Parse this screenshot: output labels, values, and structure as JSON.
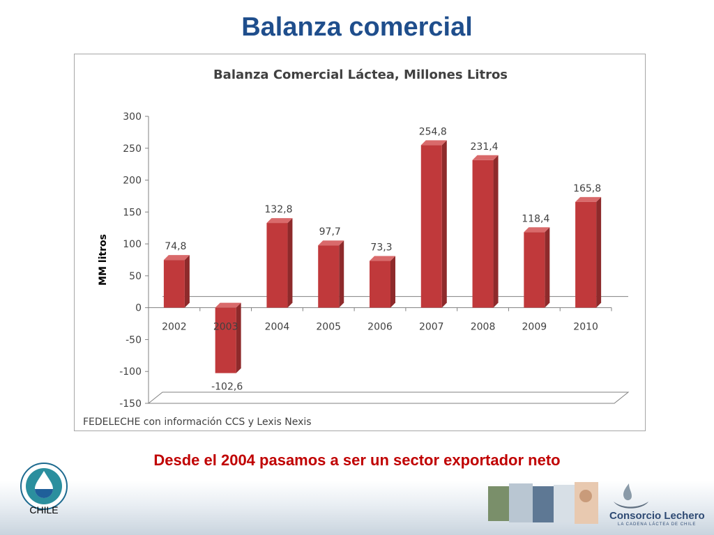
{
  "slide": {
    "title": "Balanza comercial",
    "subtitle": "Desde el 2004 pasamos a ser un sector exportador neto"
  },
  "chart_data": {
    "type": "bar",
    "title": "Balanza Comercial Láctea, Millones Litros",
    "xlabel": "",
    "ylabel": "MM litros",
    "categories": [
      "2002",
      "2003",
      "2004",
      "2005",
      "2006",
      "2007",
      "2008",
      "2009",
      "2010"
    ],
    "values": [
      74.8,
      -102.6,
      132.8,
      97.7,
      73.3,
      254.8,
      231.4,
      118.4,
      165.8
    ],
    "value_labels": [
      "74,8",
      "-102,6",
      "132,8",
      "97,7",
      "73,3",
      "254,8",
      "231,4",
      "118,4",
      "165,8"
    ],
    "ylim": [
      -150,
      300
    ],
    "yticks": [
      300,
      250,
      200,
      150,
      100,
      50,
      0,
      -50,
      -100,
      -150
    ],
    "grid": false,
    "bar_color": "#c0393b",
    "source": "FEDELECHE con información CCS y Lexis Nexis"
  },
  "logos": {
    "left_caption": "CHILE",
    "right_name": "Consorcio Lechero",
    "right_tagline": "LA CADENA LÁCTEA DE CHILE"
  },
  "colors": {
    "title": "#1f4e8c",
    "subtitle": "#c00000",
    "bar": "#c0393b"
  }
}
